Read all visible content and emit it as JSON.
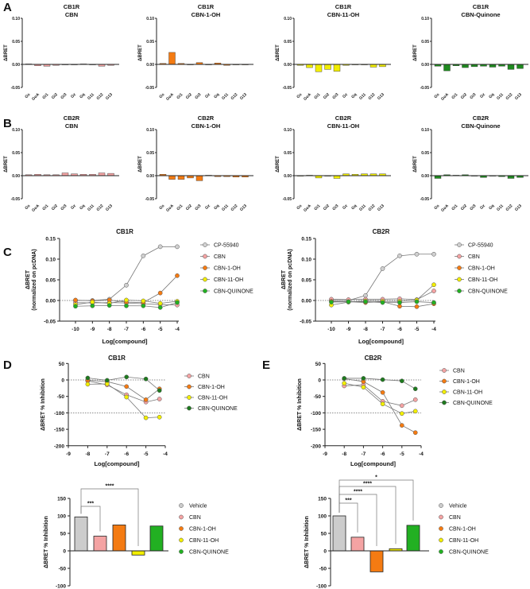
{
  "panel_labels": [
    "A",
    "B",
    "C",
    "D",
    "E"
  ],
  "chart_data": [
    {
      "type": "bar",
      "panel": "A",
      "title": [
        "CB1R",
        "CBN"
      ],
      "ylabel": "ΔBRET",
      "ylim": [
        -0.05,
        0.1
      ],
      "yticks": [
        "0.10",
        "0.05",
        "0.00",
        "-0.05"
      ],
      "categories": [
        "Gs",
        "GoA",
        "Gi1",
        "Gi2",
        "Gi3",
        "Gz",
        "Gq",
        "G11",
        "G12",
        "G13"
      ],
      "values": [
        0.001,
        -0.003,
        -0.004,
        -0.002,
        -0.001,
        -0.001,
        0.001,
        0.0,
        -0.004,
        -0.002
      ],
      "color": "#f4a3a3"
    },
    {
      "type": "bar",
      "panel": "A",
      "title": [
        "CB1R",
        "CBN-1-OH"
      ],
      "ylabel": "ΔBRET",
      "ylim": [
        -0.05,
        0.1
      ],
      "yticks": [
        "0.10",
        "0.05",
        "0.00",
        "-0.05"
      ],
      "categories": [
        "Gs",
        "GoA",
        "Gi1",
        "Gi2",
        "Gi3",
        "Gz",
        "Gq",
        "G11",
        "G12",
        "G13"
      ],
      "values": [
        0.002,
        0.026,
        0.002,
        0.0,
        0.004,
        0.0,
        0.003,
        -0.002,
        -0.001,
        -0.001
      ],
      "color": "#f47b12"
    },
    {
      "type": "bar",
      "panel": "A",
      "title": [
        "CB1R",
        "CBN-11-OH"
      ],
      "ylabel": "ΔBRET",
      "ylim": [
        -0.05,
        0.1
      ],
      "yticks": [
        "0.10",
        "0.05",
        "0.00",
        "-0.05"
      ],
      "categories": [
        "Gs",
        "GoA",
        "Gi1",
        "Gi2",
        "Gi3",
        "Gz",
        "Gq",
        "G11",
        "G12",
        "G13"
      ],
      "values": [
        -0.002,
        -0.007,
        -0.016,
        -0.011,
        -0.015,
        -0.002,
        -0.001,
        -0.001,
        -0.006,
        -0.005
      ],
      "color": "#f2ee00"
    },
    {
      "type": "bar",
      "panel": "A",
      "title": [
        "CB1R",
        "CBN-Quinone"
      ],
      "ylabel": "ΔBRET",
      "ylim": [
        -0.05,
        0.1
      ],
      "yticks": [
        "0.10",
        "0.05",
        "0.00",
        "-0.05"
      ],
      "categories": [
        "Gs",
        "GoA",
        "Gi1",
        "Gi2",
        "Gi3",
        "Gz",
        "Gq",
        "G11",
        "G12",
        "G13"
      ],
      "values": [
        -0.004,
        -0.014,
        -0.003,
        -0.007,
        -0.005,
        -0.004,
        -0.006,
        -0.004,
        -0.011,
        -0.009
      ],
      "color": "#1f8a1f"
    },
    {
      "type": "bar",
      "panel": "B",
      "title": [
        "CB2R",
        "CBN"
      ],
      "ylabel": "ΔBRET",
      "ylim": [
        -0.05,
        0.1
      ],
      "yticks": [
        "0.10",
        "0.05",
        "0.00",
        "-0.05"
      ],
      "categories": [
        "Gs",
        "GoA",
        "Gi1",
        "Gi2",
        "Gi3",
        "Gz",
        "Gq",
        "G11",
        "G12",
        "G13"
      ],
      "values": [
        0.002,
        0.003,
        0.002,
        0.002,
        0.006,
        0.004,
        0.003,
        0.003,
        0.006,
        0.005
      ],
      "color": "#f4a3a3"
    },
    {
      "type": "bar",
      "panel": "B",
      "title": [
        "CB2R",
        "CBN-1-OH"
      ],
      "ylabel": "ΔBRET",
      "ylim": [
        -0.05,
        0.1
      ],
      "yticks": [
        "0.10",
        "0.05",
        "0.00",
        "-0.05"
      ],
      "categories": [
        "Gs",
        "GoA",
        "Gi1",
        "Gi2",
        "Gi3",
        "Gz",
        "Gq",
        "G11",
        "G12",
        "G13"
      ],
      "values": [
        0.003,
        -0.008,
        -0.008,
        -0.005,
        -0.011,
        0.001,
        -0.002,
        -0.002,
        -0.003,
        -0.003
      ],
      "color": "#f47b12"
    },
    {
      "type": "bar",
      "panel": "B",
      "title": [
        "CB2R",
        "CBN-11-OH"
      ],
      "ylabel": "ΔBRET",
      "ylim": [
        -0.05,
        0.1
      ],
      "yticks": [
        "0.10",
        "0.05",
        "0.00",
        "-0.05"
      ],
      "categories": [
        "Gs",
        "GoA",
        "Gi1",
        "Gi2",
        "Gi3",
        "Gz",
        "Gq",
        "G11",
        "G12",
        "G13"
      ],
      "values": [
        -0.001,
        0.001,
        -0.005,
        0.0,
        -0.006,
        0.004,
        0.003,
        0.004,
        0.004,
        0.004
      ],
      "color": "#f2ee00"
    },
    {
      "type": "bar",
      "panel": "B",
      "title": [
        "CB2R",
        "CBN-Quinone"
      ],
      "ylabel": "ΔBRET",
      "ylim": [
        -0.05,
        0.1
      ],
      "yticks": [
        "0.10",
        "0.05",
        "0.00",
        "-0.05"
      ],
      "categories": [
        "Gs",
        "GoA",
        "Gi1",
        "Gi2",
        "Gi3",
        "Gz",
        "Gq",
        "G11",
        "G12",
        "G13"
      ],
      "values": [
        -0.006,
        0.002,
        0.001,
        0.002,
        0.0,
        -0.004,
        0.0,
        -0.002,
        -0.006,
        -0.004
      ],
      "color": "#1f8a1f"
    },
    {
      "type": "line",
      "panel": "C",
      "title": "CB1R",
      "xlabel": "Log[compound]",
      "ylabel": [
        "ΔBRET",
        "(normalized on pcDNA)"
      ],
      "xlim": [
        -10,
        -4
      ],
      "ylim": [
        -0.05,
        0.15
      ],
      "xticks": [
        "-10",
        "-9",
        "-8",
        "-7",
        "-6",
        "-5",
        "-4"
      ],
      "yticks": [
        "0.15",
        "0.10",
        "0.05",
        "0.00",
        "-0.05"
      ],
      "x": [
        -10,
        -9,
        -8,
        -7,
        -6,
        -5,
        -4
      ],
      "reference_lines": [
        0
      ],
      "legend_placement": "right",
      "series": [
        {
          "name": "CP-55940",
          "color": "#d0d0d0",
          "values": [
            0.0,
            0.0,
            0.003,
            0.037,
            0.108,
            0.13,
            0.13
          ]
        },
        {
          "name": "CBN",
          "color": "#f4a3a3",
          "values": [
            -0.005,
            -0.006,
            -0.005,
            -0.006,
            -0.008,
            -0.01,
            -0.011
          ]
        },
        {
          "name": "CBN-1-OH",
          "color": "#f47b12",
          "values": [
            0.001,
            -0.001,
            0.001,
            -0.004,
            -0.005,
            0.018,
            0.06
          ]
        },
        {
          "name": "CBN-11-OH",
          "color": "#f2ee00",
          "values": [
            -0.01,
            -0.004,
            -0.007,
            0.001,
            -0.001,
            -0.007,
            -0.002
          ]
        },
        {
          "name": "CBN-QUINONE",
          "color": "#22b022",
          "values": [
            -0.014,
            -0.013,
            -0.012,
            -0.013,
            -0.013,
            -0.017,
            -0.005
          ]
        }
      ]
    },
    {
      "type": "line",
      "panel": "C",
      "title": "CB2R",
      "xlabel": "Log[compound]",
      "ylabel": [
        "ΔBRET",
        "(normalized on pcDNA)"
      ],
      "xlim": [
        -10,
        -4
      ],
      "ylim": [
        -0.05,
        0.15
      ],
      "xticks": [
        "-10",
        "-9",
        "-8",
        "-7",
        "-6",
        "-5",
        "-4"
      ],
      "yticks": [
        "0.15",
        "0.10",
        "0.05",
        "0.00",
        "-0.05"
      ],
      "x": [
        -10,
        -9,
        -8,
        -7,
        -6,
        -5,
        -4
      ],
      "reference_lines": [
        0
      ],
      "legend_placement": "right",
      "series": [
        {
          "name": "CP-55940",
          "color": "#d0d0d0",
          "values": [
            0.0,
            0.0,
            0.012,
            0.077,
            0.108,
            0.112,
            0.112
          ]
        },
        {
          "name": "CBN",
          "color": "#f4a3a3",
          "values": [
            0.003,
            0.002,
            0.003,
            0.003,
            0.004,
            0.002,
            0.023
          ]
        },
        {
          "name": "CBN-1-OH",
          "color": "#f47b12",
          "values": [
            -0.002,
            -0.003,
            -0.005,
            -0.003,
            -0.014,
            -0.015,
            -0.008
          ]
        },
        {
          "name": "CBN-11-OH",
          "color": "#f2ee00",
          "values": [
            -0.011,
            -0.004,
            -0.001,
            -0.002,
            -0.002,
            0.001,
            0.038
          ]
        },
        {
          "name": "CBN-QUINONE",
          "color": "#22b022",
          "values": [
            -0.004,
            -0.003,
            -0.003,
            -0.005,
            -0.005,
            -0.003,
            -0.005
          ]
        }
      ]
    },
    {
      "type": "line",
      "panel": "D",
      "title": "CB1R",
      "xlabel": "Log[compound]",
      "ylabel": "ΔBRET % Inhibition",
      "xlim": [
        -9,
        -4
      ],
      "ylim": [
        -200,
        50
      ],
      "xticks": [
        "-9",
        "-8",
        "-7",
        "-6",
        "-5",
        "-4"
      ],
      "yticks": [
        "50",
        "0",
        "-50",
        "-100",
        "-150",
        "-200"
      ],
      "x": [
        -8,
        -7,
        -6,
        -5,
        -4.3
      ],
      "reference_lines": [
        0,
        -100
      ],
      "legend_placement": "right",
      "series": [
        {
          "name": "CBN",
          "color": "#f4a3a3",
          "values": [
            -3,
            -15,
            -45,
            -67,
            -58
          ]
        },
        {
          "name": "CBN-1-OH",
          "color": "#f47b12",
          "values": [
            -1,
            -5,
            -20,
            -60,
            -27
          ]
        },
        {
          "name": "CBN-11-OH",
          "color": "#f2ee00",
          "values": [
            -13,
            -12,
            -52,
            -115,
            -113
          ]
        },
        {
          "name": "CBN-QUINONE",
          "color": "#1e7a1e",
          "values": [
            6,
            -1,
            9,
            3,
            -32
          ]
        }
      ]
    },
    {
      "type": "line",
      "panel": "E",
      "title": "CB2R",
      "xlabel": "Log[compound]",
      "ylabel": "ΔBRET % Inhibition",
      "xlim": [
        -9,
        -4
      ],
      "ylim": [
        -200,
        50
      ],
      "xticks": [
        "-9",
        "-8",
        "-7",
        "-6",
        "-5",
        "-4"
      ],
      "yticks": [
        "50",
        "0",
        "-50",
        "-100",
        "-150",
        "-200"
      ],
      "x": [
        -8,
        -7,
        -6,
        -5,
        -4.3
      ],
      "reference_lines": [
        0,
        -100
      ],
      "legend_placement": "right",
      "series": [
        {
          "name": "CBN",
          "color": "#f4a3a3",
          "values": [
            -18,
            -15,
            -65,
            -78,
            -60
          ]
        },
        {
          "name": "CBN-1-OH",
          "color": "#f47b12",
          "values": [
            4,
            -5,
            -38,
            -138,
            -160
          ]
        },
        {
          "name": "CBN-11-OH",
          "color": "#f2ee00",
          "values": [
            -10,
            -22,
            -73,
            -102,
            -95
          ]
        },
        {
          "name": "CBN-QUINONE",
          "color": "#1e7a1e",
          "values": [
            5,
            5,
            1,
            -3,
            -27
          ]
        }
      ]
    },
    {
      "type": "bar",
      "panel": "D",
      "ylabel": "ΔBRET % Inhibition",
      "ylim": [
        -100,
        150
      ],
      "yticks": [
        "150",
        "100",
        "50",
        "0",
        "-50",
        "-100"
      ],
      "categories": [
        "Vehicle",
        "CBN",
        "CBN-1-OH",
        "CBN-11-OH",
        "CBN-QUINONE"
      ],
      "values": [
        97,
        42,
        74,
        -12,
        71
      ],
      "colors": [
        "#cccccc",
        "#f4a3a3",
        "#f47b12",
        "#f2ee00",
        "#22b022"
      ],
      "legend_placement": "right",
      "significance": [
        {
          "compare": [
            "Vehicle",
            "CBN"
          ],
          "label": "***"
        },
        {
          "compare": [
            "Vehicle",
            "CBN-11-OH"
          ],
          "label": "****"
        }
      ]
    },
    {
      "type": "bar",
      "panel": "E",
      "ylabel": "ΔBRET % Inhibition",
      "ylim": [
        -100,
        150
      ],
      "yticks": [
        "150",
        "100",
        "50",
        "0",
        "-50",
        "-100"
      ],
      "categories": [
        "Vehicle",
        "CBN",
        "CBN-1-OH",
        "CBN-11-OH",
        "CBN-QUINONE"
      ],
      "values": [
        100,
        39,
        -60,
        6,
        73
      ],
      "colors": [
        "#cccccc",
        "#f4a3a3",
        "#f47b12",
        "#f2ee00",
        "#22b022"
      ],
      "legend_placement": "right",
      "significance": [
        {
          "compare": [
            "Vehicle",
            "CBN"
          ],
          "label": "***"
        },
        {
          "compare": [
            "Vehicle",
            "CBN-1-OH"
          ],
          "label": "****"
        },
        {
          "compare": [
            "Vehicle",
            "CBN-11-OH"
          ],
          "label": "****"
        },
        {
          "compare": [
            "Vehicle",
            "CBN-QUINONE"
          ],
          "label": "*"
        }
      ]
    }
  ]
}
